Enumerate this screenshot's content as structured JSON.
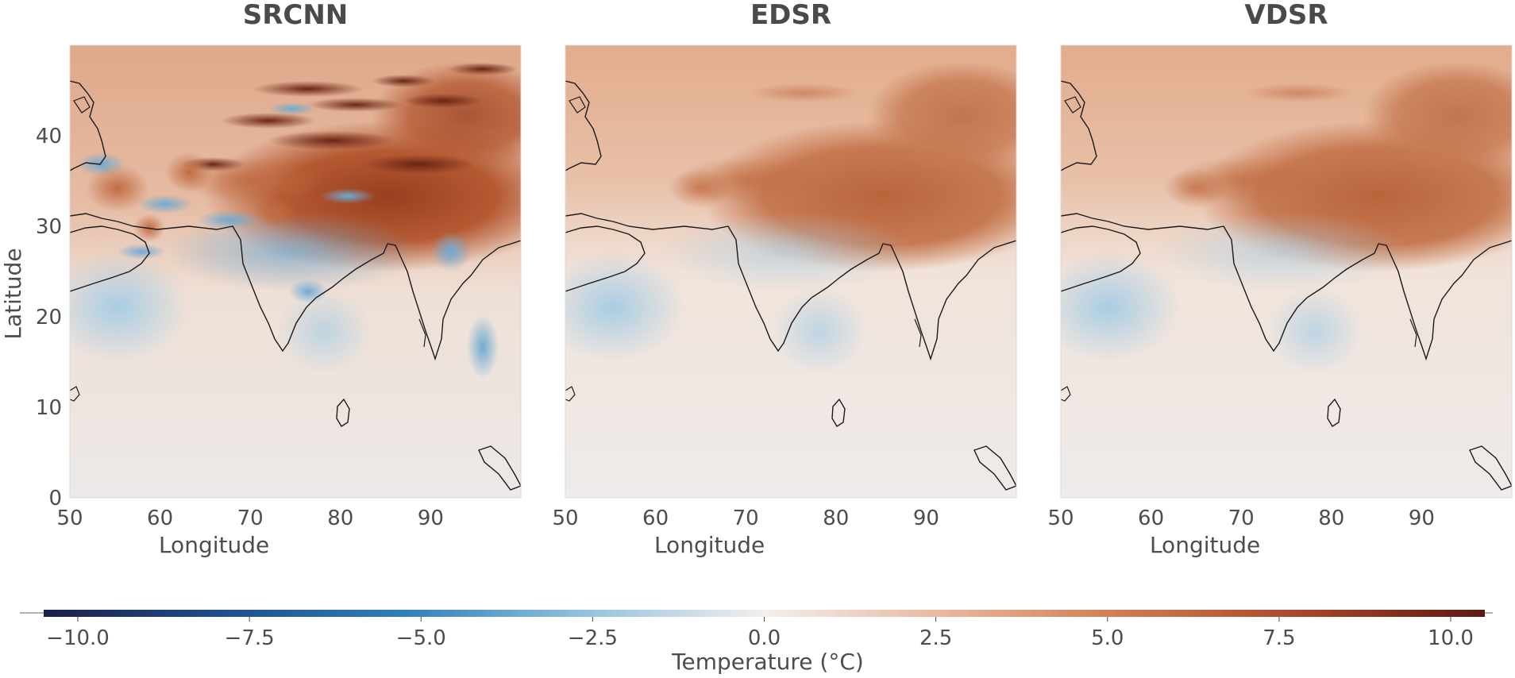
{
  "chart_data": {
    "type": "heatmap",
    "panels": [
      {
        "title": "SRCNN",
        "xlabel": "Longitude",
        "ylabel": "Latitude",
        "xticks": [
          "50",
          "60",
          "70",
          "80",
          "90"
        ],
        "yticks": [
          "0",
          "10",
          "20",
          "30",
          "40"
        ],
        "xlim": [
          50,
          100
        ],
        "ylim": [
          0,
          50
        ]
      },
      {
        "title": "EDSR",
        "xlabel": "Longitude",
        "ylabel": "",
        "xticks": [
          "50",
          "60",
          "70",
          "80",
          "90"
        ],
        "yticks": [],
        "xlim": [
          50,
          100
        ],
        "ylim": [
          0,
          50
        ]
      },
      {
        "title": "VDSR",
        "xlabel": "Longitude",
        "ylabel": "",
        "xticks": [
          "50",
          "60",
          "70",
          "80",
          "90"
        ],
        "yticks": [],
        "xlim": [
          50,
          100
        ],
        "ylim": [
          0,
          50
        ]
      }
    ],
    "colorbar": {
      "label": "Temperature (°C)",
      "ticks": [
        "−10.0",
        "−7.5",
        "−5.0",
        "−2.5",
        "0.0",
        "2.5",
        "5.0",
        "7.5",
        "10.0"
      ],
      "range": [
        -10,
        10
      ],
      "colors": [
        "#1b1f4a",
        "#1f4f8a",
        "#2f7fb8",
        "#92c2df",
        "#f2efed",
        "#e9b79c",
        "#cf7a4f",
        "#a8452a",
        "#5c1a10"
      ]
    },
    "grid": false
  }
}
